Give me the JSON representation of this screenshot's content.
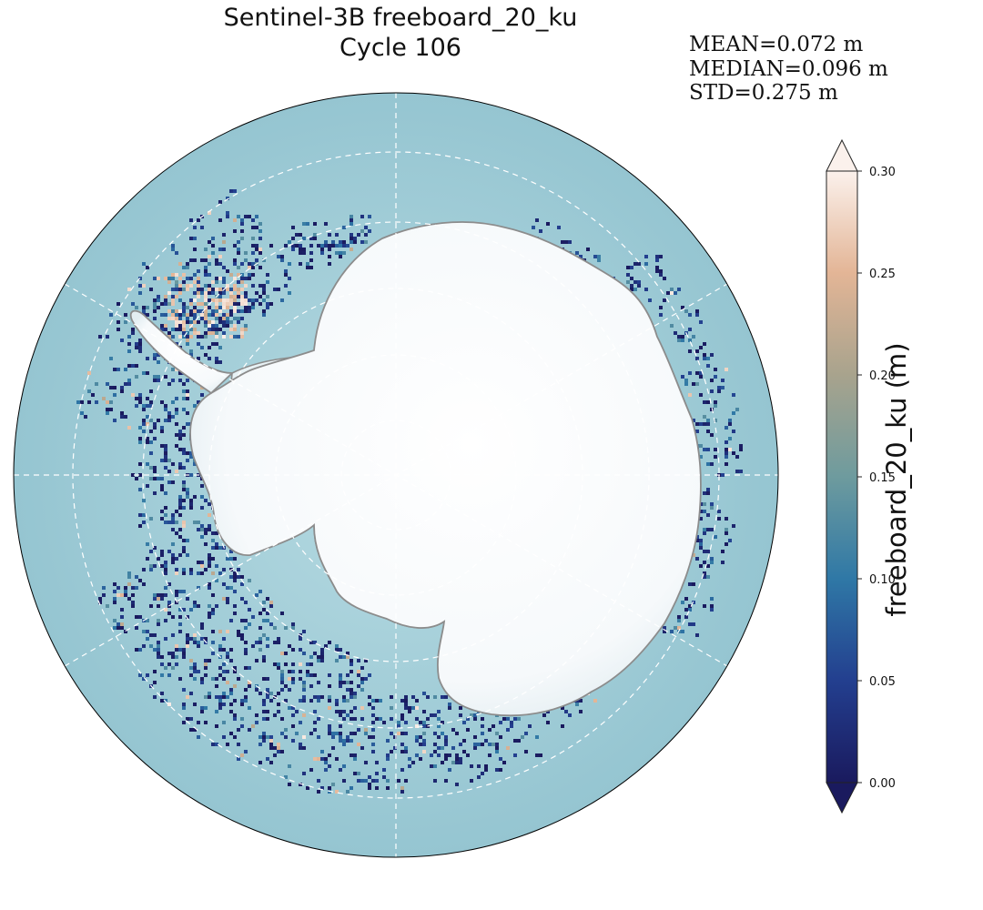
{
  "figure": {
    "title_line1": "Sentinel-3B freeboard_20_ku",
    "title_line2": "Cycle 106"
  },
  "stats": {
    "mean": "MEAN=0.072 m",
    "median": "MEDIAN=0.096 m",
    "std": "STD=0.275 m"
  },
  "map": {
    "projection": "south-polar-stereographic",
    "graticule": "dashed-white",
    "ocean_color": "#9ecbd6",
    "ice_color": "#ffffff",
    "coastline_color": "#8c8c8c"
  },
  "colorbar": {
    "label": "freeboard_20_ku (m)",
    "ticks": [
      "0.00",
      "0.05",
      "0.10",
      "0.15",
      "0.20",
      "0.25",
      "0.30"
    ],
    "range": [
      0.0,
      0.3
    ],
    "extend": "both",
    "colormap_stops": [
      "#1a1a5e",
      "#233f8f",
      "#2f78a6",
      "#6e9b9e",
      "#a8a38d",
      "#e3b596",
      "#fbf1ec"
    ]
  },
  "chart_data": {
    "type": "heatmap",
    "title": "Sentinel-3B freeboard_20_ku",
    "subtitle": "Cycle 106",
    "colorbar_label": "freeboard_20_ku (m)",
    "vmin": 0.0,
    "vmax": 0.3,
    "stats": {
      "mean": 0.072,
      "median": 0.096,
      "std": 0.275
    }
  }
}
